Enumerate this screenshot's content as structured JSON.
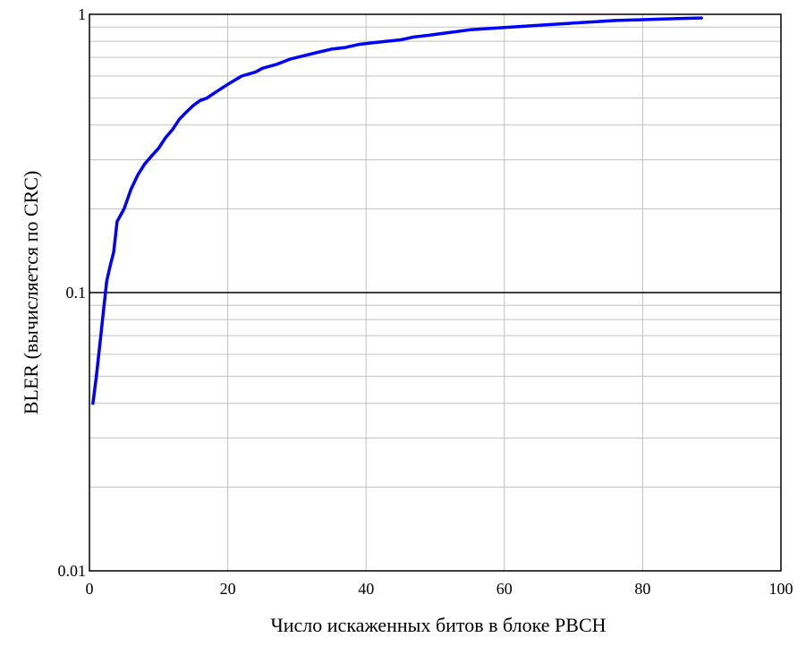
{
  "chart_data": {
    "type": "line",
    "title": "",
    "xlabel": "Число искаженных битов в блоке PBCH",
    "ylabel": "BLER (вычисляется по CRC)",
    "xlim": [
      0,
      100
    ],
    "ylim": [
      0.01,
      1
    ],
    "yscale": "log",
    "x_ticks": [
      0,
      20,
      40,
      60,
      80,
      100
    ],
    "x_tick_labels": [
      "0",
      "20",
      "40",
      "60",
      "80",
      "100"
    ],
    "y_ticks": [
      0.01,
      0.1,
      1
    ],
    "y_tick_labels": [
      "0.01",
      "0.1",
      "1"
    ],
    "grid": true,
    "colors": {
      "line": "#0000ff",
      "grid": "#c0c0c0",
      "decade_line": "#000000"
    },
    "series": [
      {
        "x": [
          0.5,
          1,
          1.5,
          2,
          2.5,
          3,
          3.5,
          4,
          5,
          6,
          7,
          8,
          9,
          10,
          11,
          12,
          13,
          14,
          15,
          16,
          17,
          18,
          20,
          22,
          24,
          25,
          27,
          29,
          31,
          33,
          35,
          37,
          39,
          41,
          43,
          45,
          47,
          49,
          52,
          55,
          58,
          61,
          64,
          67,
          70,
          73,
          76,
          79,
          82,
          85,
          88.5
        ],
        "y": [
          0.04,
          0.05,
          0.065,
          0.085,
          0.11,
          0.125,
          0.14,
          0.18,
          0.2,
          0.235,
          0.265,
          0.29,
          0.31,
          0.33,
          0.36,
          0.385,
          0.42,
          0.445,
          0.47,
          0.49,
          0.5,
          0.52,
          0.56,
          0.6,
          0.62,
          0.64,
          0.66,
          0.69,
          0.71,
          0.73,
          0.75,
          0.76,
          0.78,
          0.79,
          0.8,
          0.81,
          0.83,
          0.84,
          0.86,
          0.88,
          0.89,
          0.9,
          0.91,
          0.92,
          0.93,
          0.94,
          0.95,
          0.955,
          0.96,
          0.965,
          0.97
        ]
      }
    ]
  }
}
